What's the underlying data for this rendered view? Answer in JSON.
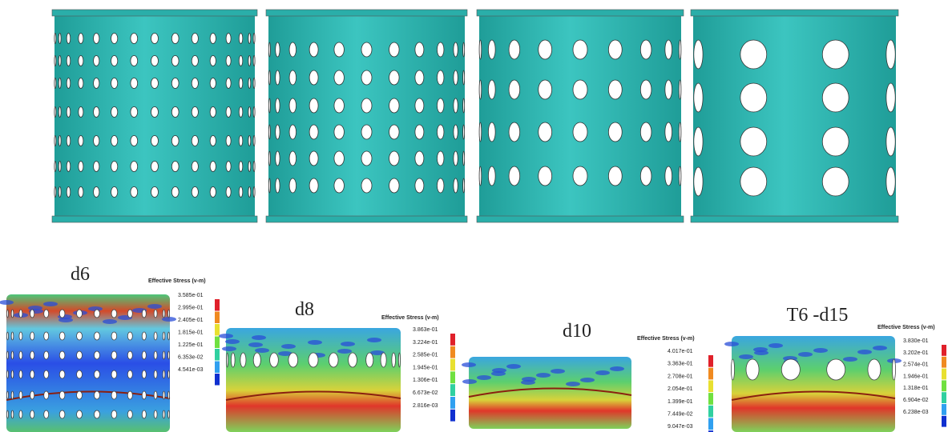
{
  "panels": [
    {
      "label": "d6",
      "legend_title": "Effective Stress (v-m)",
      "legend_values": [
        "3.585e-01",
        "2.995e-01",
        "2.405e-01",
        "1.815e-01",
        "1.225e-01",
        "6.353e-02",
        "4.541e-03"
      ]
    },
    {
      "label": "d8",
      "legend_title": "Effective Stress (v-m)",
      "legend_values": [
        "3.863e-01",
        "3.224e-01",
        "2.585e-01",
        "1.945e-01",
        "1.306e-01",
        "6.673e-02",
        "2.816e-03"
      ]
    },
    {
      "label": "d10",
      "legend_title": "Effective Stress (v-m)",
      "legend_values": [
        "4.017e-01",
        "3.363e-01",
        "2.708e-01",
        "2.054e-01",
        "1.399e-01",
        "7.449e-02",
        "9.047e-03"
      ]
    },
    {
      "label": "T6 -d15",
      "legend_title": "Effective Stress (v-m)",
      "legend_values": [
        "3.830e-01",
        "3.202e-01",
        "2.574e-01",
        "1.946e-01",
        "1.318e-01",
        "6.904e-02",
        "6.238e-03"
      ]
    }
  ]
}
